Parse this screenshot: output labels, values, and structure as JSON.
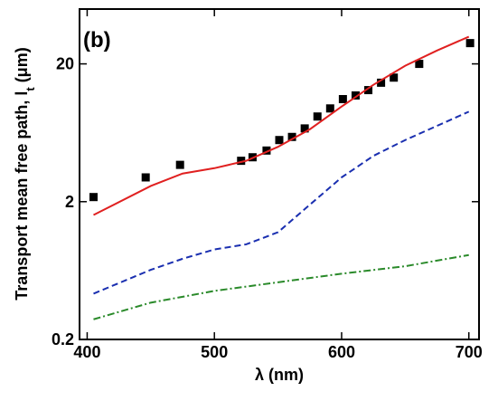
{
  "chart_data": {
    "type": "line",
    "annotation": "(b)",
    "xlabel": "λ (nm)",
    "ylabel": "Transport mean free path, l",
    "ylabel_sub": "t",
    "ylabel_unit": " (μm)",
    "xlim": [
      394,
      708
    ],
    "xticks": [
      400,
      500,
      600,
      700
    ],
    "ylim": [
      0.2,
      50
    ],
    "yticks": [
      0.2,
      2,
      20
    ],
    "ylog": true,
    "series": [
      {
        "color": "#000000",
        "style": "markers",
        "x": [
          405,
          446,
          473,
          521,
          530,
          541,
          551,
          561,
          571,
          581,
          591,
          601,
          611,
          621,
          631,
          641,
          661,
          701
        ],
        "values": [
          2.16,
          3.0,
          3.7,
          3.96,
          4.2,
          4.7,
          5.6,
          5.9,
          6.8,
          8.3,
          9.5,
          11.1,
          11.8,
          12.9,
          14.6,
          15.9,
          20,
          28.3
        ]
      },
      {
        "color": "#e02020",
        "style": "solid",
        "x": [
          405,
          450,
          475,
          500,
          525,
          550,
          575,
          600,
          625,
          650,
          675,
          700
        ],
        "values": [
          1.6,
          2.6,
          3.2,
          3.5,
          3.96,
          5.0,
          6.7,
          9.8,
          14.1,
          19.4,
          25,
          31.5
        ]
      },
      {
        "color": "#1a2fb0",
        "style": "dashed",
        "x": [
          405,
          450,
          475,
          500,
          525,
          550,
          575,
          600,
          625,
          650,
          675,
          700
        ],
        "values": [
          0.43,
          0.64,
          0.77,
          0.9,
          0.98,
          1.2,
          1.9,
          3.0,
          4.3,
          5.6,
          7.1,
          9.0
        ]
      },
      {
        "color": "#2a8a2a",
        "style": "dashdot",
        "x": [
          405,
          450,
          500,
          550,
          600,
          650,
          700
        ],
        "values": [
          0.28,
          0.37,
          0.45,
          0.52,
          0.6,
          0.68,
          0.82
        ]
      }
    ]
  }
}
